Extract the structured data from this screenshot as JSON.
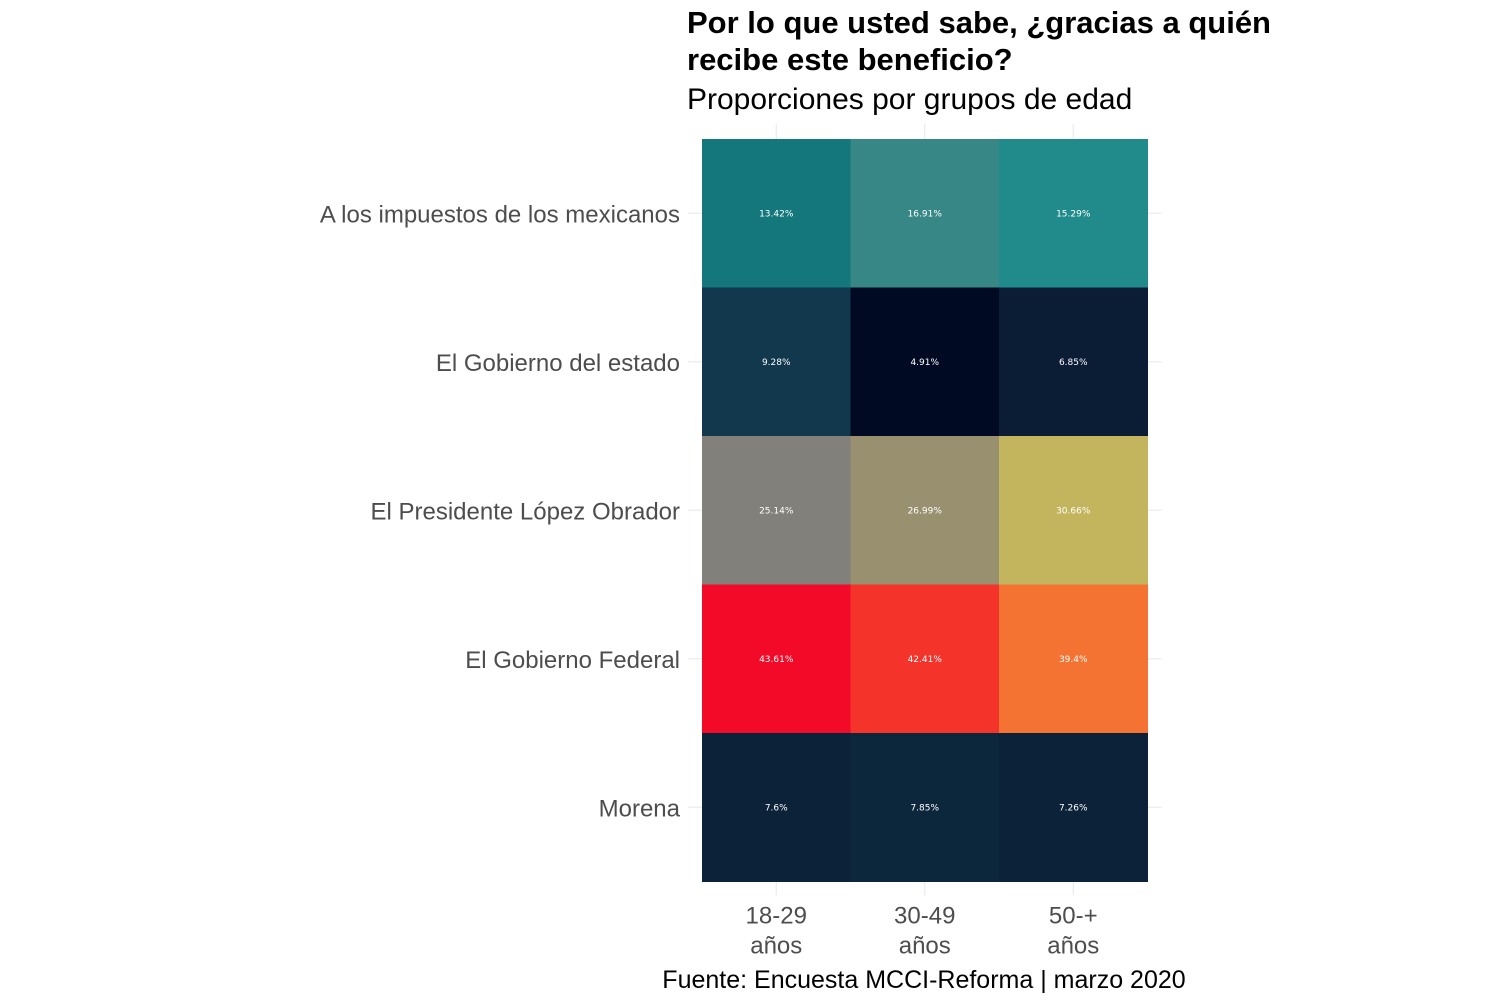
{
  "chart_data": {
    "type": "heatmap",
    "title_lines": [
      "Por lo que usted sabe, ¿gracias a quién",
      "recibe este beneficio?"
    ],
    "subtitle": "Proporciones por grupos de edad",
    "caption": "Fuente: Encuesta MCCI-Reforma | marzo 2020",
    "x_categories": [
      {
        "line1": "18-29",
        "line2": "años"
      },
      {
        "line1": "30-49",
        "line2": "años"
      },
      {
        "line1": "50-+",
        "line2": "años"
      }
    ],
    "y_categories": [
      "A los impuestos de los mexicanos",
      "El Gobierno del estado",
      "El Presidente López Obrador",
      "El Gobierno Federal",
      "Morena"
    ],
    "values": [
      [
        13.42,
        16.91,
        15.29
      ],
      [
        9.28,
        4.91,
        6.85
      ],
      [
        25.14,
        26.99,
        30.66
      ],
      [
        43.61,
        42.41,
        39.4
      ],
      [
        7.6,
        7.85,
        7.26
      ]
    ],
    "labels": [
      [
        "13.42%",
        "16.91%",
        "15.29%"
      ],
      [
        "9.28%",
        "4.91%",
        "6.85%"
      ],
      [
        "25.14%",
        "26.99%",
        "30.66%"
      ],
      [
        "43.61%",
        "42.41%",
        "39.4%"
      ],
      [
        "7.6%",
        "7.85%",
        "7.26%"
      ]
    ],
    "colors": [
      [
        "#14777b",
        "#378787",
        "#218a8b"
      ],
      [
        "#11384d",
        "#000a23",
        "#0a1d35"
      ],
      [
        "#82807a",
        "#999070",
        "#c3b55e"
      ],
      [
        "#f30a28",
        "#f4332b",
        "#f47332"
      ],
      [
        "#0b2239",
        "#0c263c",
        "#0b2239"
      ]
    ],
    "grid": true,
    "legend": "none"
  }
}
